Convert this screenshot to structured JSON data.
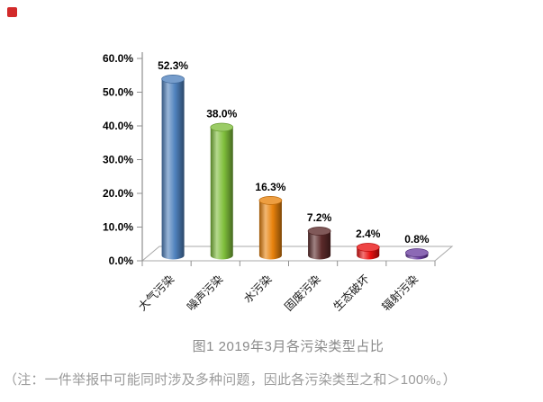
{
  "page": {
    "marker_color": "#d22a2a"
  },
  "chart_data": {
    "type": "bar",
    "bar_style": "cylinder-3d",
    "title": "",
    "xlabel": "",
    "ylabel": "",
    "categories": [
      "大气污染",
      "噪声污染",
      "水污染",
      "固废污染",
      "生态破坏",
      "辐射污染"
    ],
    "values": [
      52.3,
      38.0,
      16.3,
      7.2,
      2.4,
      0.8
    ],
    "value_labels": [
      "52.3%",
      "38.0%",
      "16.3%",
      "7.2%",
      "2.4%",
      "0.8%"
    ],
    "bar_colors": [
      "#4f81bd",
      "#7fbe3b",
      "#e8820c",
      "#5c2a2a",
      "#e90f0f",
      "#6b3fa0"
    ],
    "ytick_labels": [
      "60.0%",
      "50.0%",
      "40.0%",
      "30.0%",
      "20.0%",
      "10.0%",
      "0.0%"
    ],
    "ylim": [
      0,
      60
    ],
    "ytick_step": 10,
    "grid": false,
    "legend": false,
    "axis_color": "#909090"
  },
  "caption": "图1  2019年3月各污染类型占比",
  "note": "（注：一件举报中可能同时涉及多种问题，因此各污染类型之和＞100%。）"
}
